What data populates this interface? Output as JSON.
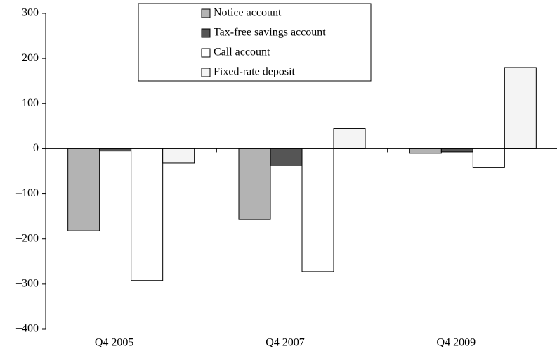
{
  "chart_data": {
    "type": "bar",
    "categories": [
      "Q4 2005",
      "Q4 2007",
      "Q4 2009"
    ],
    "series": [
      {
        "name": "Notice account",
        "color": "#b3b3b3",
        "values": [
          -182,
          -157,
          -10
        ]
      },
      {
        "name": "Tax-free savings account",
        "color": "#555555",
        "values": [
          -5,
          -37,
          -7
        ]
      },
      {
        "name": "Call account",
        "color": "#ffffff",
        "values": [
          -292,
          -272,
          -42
        ]
      },
      {
        "name": "Fixed-rate deposit",
        "color": "#f4f4f4",
        "values": [
          -32,
          45,
          180
        ]
      }
    ],
    "ylim": [
      -400,
      300
    ],
    "yticks": [
      {
        "value": -400,
        "label": "–400"
      },
      {
        "value": -300,
        "label": "–300"
      },
      {
        "value": -200,
        "label": "–200"
      },
      {
        "value": -100,
        "label": "–100"
      },
      0,
      100,
      200,
      300
    ],
    "legend": "top"
  }
}
